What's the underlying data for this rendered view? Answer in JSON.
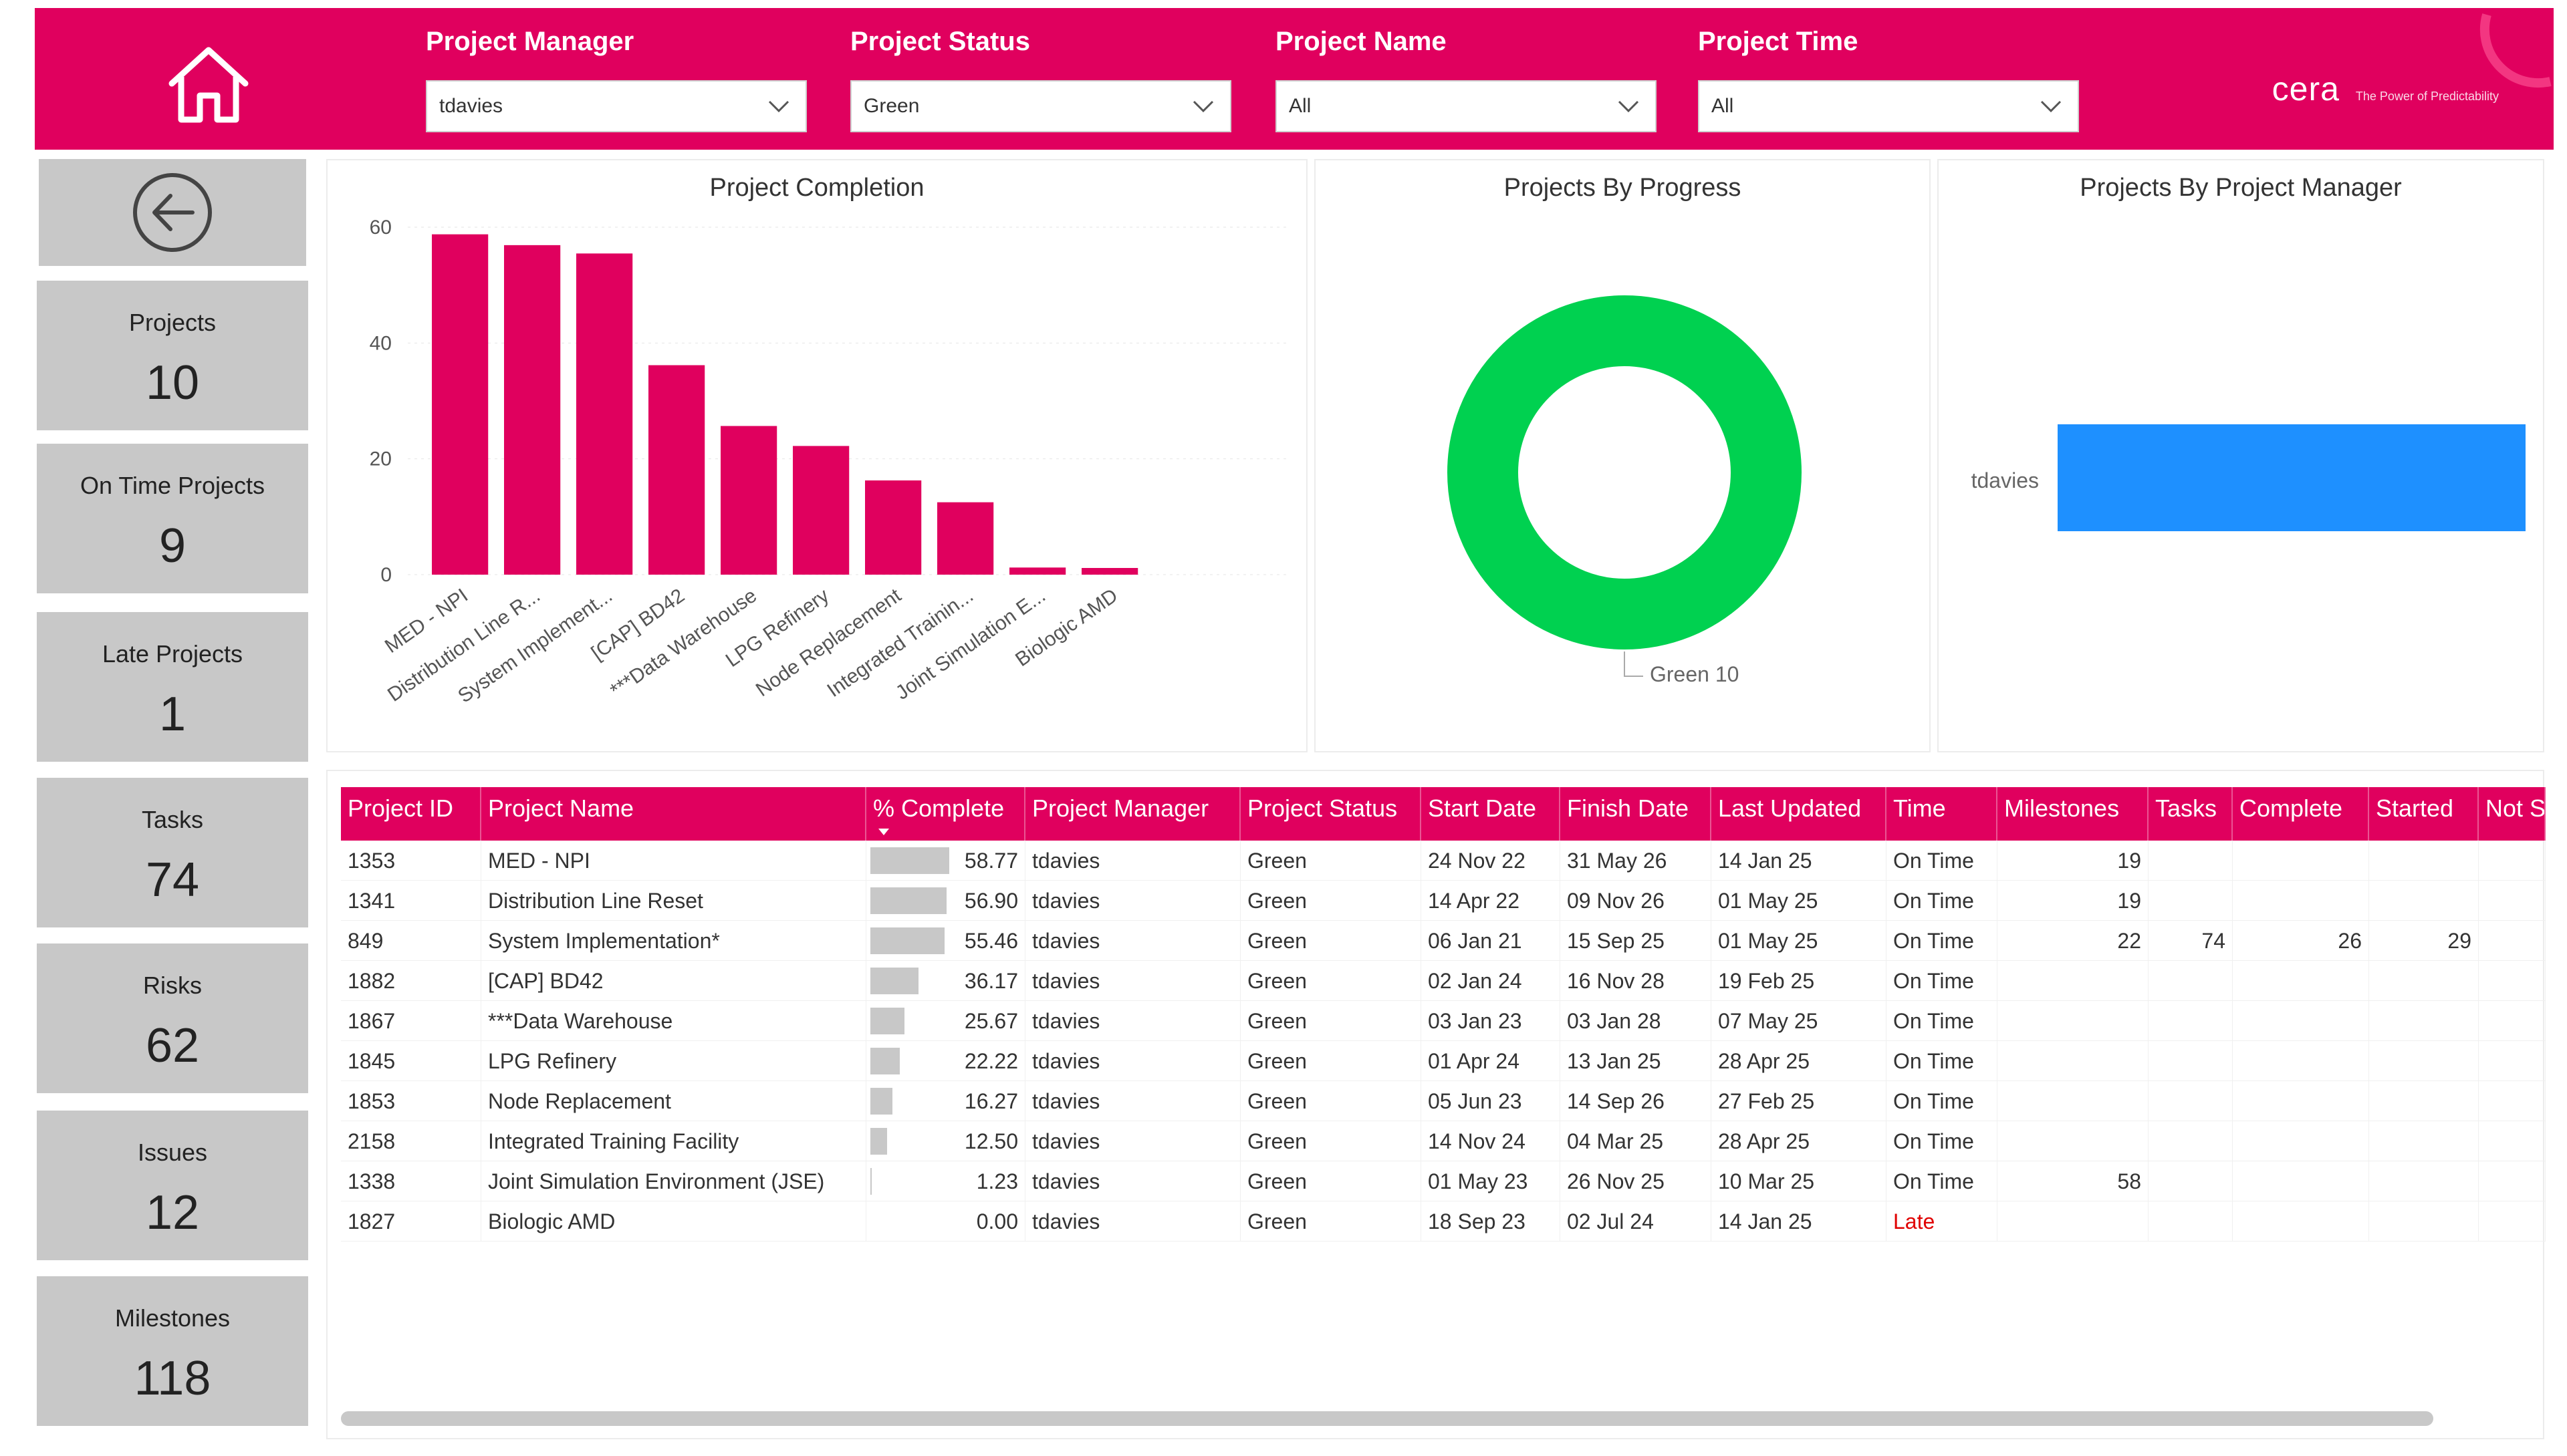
{
  "header": {
    "filters": [
      {
        "label": "Project Manager",
        "value": "tdavies"
      },
      {
        "label": "Project Status",
        "value": "Green"
      },
      {
        "label": "Project Name",
        "value": "All"
      },
      {
        "label": "Project Time",
        "value": "All"
      }
    ],
    "logo": {
      "word": "cera",
      "tagline": "The Power of Predictability"
    }
  },
  "kpis": [
    {
      "label": "Projects",
      "value": "10"
    },
    {
      "label": "On Time Projects",
      "value": "9"
    },
    {
      "label": "Late Projects",
      "value": "1"
    },
    {
      "label": "Tasks",
      "value": "74"
    },
    {
      "label": "Risks",
      "value": "62"
    },
    {
      "label": "Issues",
      "value": "12"
    },
    {
      "label": "Milestones",
      "value": "118"
    }
  ],
  "colors": {
    "accent": "#e0005e",
    "donut": "#00d150",
    "pm_bar": "#1e90ff",
    "card": "#c8c8c8"
  },
  "charts": {
    "completion": {
      "title": "Project Completion"
    },
    "progress": {
      "title": "Projects By Progress"
    },
    "manager": {
      "title": "Projects By Project Manager"
    }
  },
  "chart_data": [
    {
      "type": "bar",
      "title": "Project Completion",
      "categories": [
        "MED - NPI",
        "Distribution Line R...",
        "System Implement...",
        "[CAP] BD42",
        "***Data Warehouse",
        "LPG Refinery",
        "Node Replacement",
        "Integrated Trainin...",
        "Joint Simulation E...",
        "Biologic AMD"
      ],
      "values": [
        58.77,
        56.9,
        55.46,
        36.17,
        25.67,
        22.22,
        16.27,
        12.5,
        1.23,
        0.0
      ],
      "yticks": [
        "0",
        "20",
        "40",
        "60"
      ],
      "ylim": [
        0,
        60
      ],
      "color": "#e0005e"
    },
    {
      "type": "pie",
      "title": "Projects By Progress",
      "slices": [
        {
          "name": "Green",
          "value": 10,
          "color": "#00d150"
        }
      ],
      "label": "Green 10"
    },
    {
      "type": "bar",
      "title": "Projects By Project Manager",
      "categories": [
        "tdavies"
      ],
      "values": [
        10
      ],
      "orientation": "horizontal",
      "color": "#1e90ff"
    }
  ],
  "table": {
    "columns": [
      "Project ID",
      "Project Name",
      "% Complete",
      "Project Manager",
      "Project Status",
      "Start Date",
      "Finish Date",
      "Last Updated",
      "Time",
      "Milestones",
      "Tasks",
      "Complete",
      "Started",
      "Not S"
    ],
    "rows": [
      {
        "id": "1353",
        "name": "MED - NPI",
        "pct": "58.77",
        "pm": "tdavies",
        "status": "Green",
        "start": "24 Nov 22",
        "finish": "31 May 26",
        "updated": "14 Jan 25",
        "time": "On Time",
        "milestones": "19",
        "tasks": "",
        "complete": "",
        "started": "",
        "notstarted": ""
      },
      {
        "id": "1341",
        "name": "Distribution Line Reset",
        "pct": "56.90",
        "pm": "tdavies",
        "status": "Green",
        "start": "14 Apr 22",
        "finish": "09 Nov 26",
        "updated": "01 May 25",
        "time": "On Time",
        "milestones": "19",
        "tasks": "",
        "complete": "",
        "started": "",
        "notstarted": ""
      },
      {
        "id": "849",
        "name": "System Implementation*",
        "pct": "55.46",
        "pm": "tdavies",
        "status": "Green",
        "start": "06 Jan 21",
        "finish": "15 Sep 25",
        "updated": "01 May 25",
        "time": "On Time",
        "milestones": "22",
        "tasks": "74",
        "complete": "26",
        "started": "29",
        "notstarted": ""
      },
      {
        "id": "1882",
        "name": "[CAP] BD42",
        "pct": "36.17",
        "pm": "tdavies",
        "status": "Green",
        "start": "02 Jan 24",
        "finish": "16 Nov 28",
        "updated": "19 Feb 25",
        "time": "On Time",
        "milestones": "",
        "tasks": "",
        "complete": "",
        "started": "",
        "notstarted": ""
      },
      {
        "id": "1867",
        "name": "***Data Warehouse",
        "pct": "25.67",
        "pm": "tdavies",
        "status": "Green",
        "start": "03 Jan 23",
        "finish": "03 Jan 28",
        "updated": "07 May 25",
        "time": "On Time",
        "milestones": "",
        "tasks": "",
        "complete": "",
        "started": "",
        "notstarted": ""
      },
      {
        "id": "1845",
        "name": "LPG Refinery",
        "pct": "22.22",
        "pm": "tdavies",
        "status": "Green",
        "start": "01 Apr 24",
        "finish": "13 Jan 25",
        "updated": "28 Apr 25",
        "time": "On Time",
        "milestones": "",
        "tasks": "",
        "complete": "",
        "started": "",
        "notstarted": ""
      },
      {
        "id": "1853",
        "name": "Node Replacement",
        "pct": "16.27",
        "pm": "tdavies",
        "status": "Green",
        "start": "05 Jun 23",
        "finish": "14 Sep 26",
        "updated": "27 Feb 25",
        "time": "On Time",
        "milestones": "",
        "tasks": "",
        "complete": "",
        "started": "",
        "notstarted": ""
      },
      {
        "id": "2158",
        "name": "Integrated Training Facility",
        "pct": "12.50",
        "pm": "tdavies",
        "status": "Green",
        "start": "14 Nov 24",
        "finish": "04 Mar 25",
        "updated": "28 Apr 25",
        "time": "On Time",
        "milestones": "",
        "tasks": "",
        "complete": "",
        "started": "",
        "notstarted": ""
      },
      {
        "id": "1338",
        "name": "Joint Simulation Environment (JSE)",
        "pct": "1.23",
        "pm": "tdavies",
        "status": "Green",
        "start": "01 May 23",
        "finish": "26 Nov 25",
        "updated": "10 Mar 25",
        "time": "On Time",
        "milestones": "58",
        "tasks": "",
        "complete": "",
        "started": "",
        "notstarted": ""
      },
      {
        "id": "1827",
        "name": "Biologic AMD",
        "pct": "0.00",
        "pm": "tdavies",
        "status": "Green",
        "start": "18 Sep 23",
        "finish": "02 Jul 24",
        "updated": "14 Jan 25",
        "time": "Late",
        "milestones": "",
        "tasks": "",
        "complete": "",
        "started": "",
        "notstarted": ""
      }
    ]
  }
}
